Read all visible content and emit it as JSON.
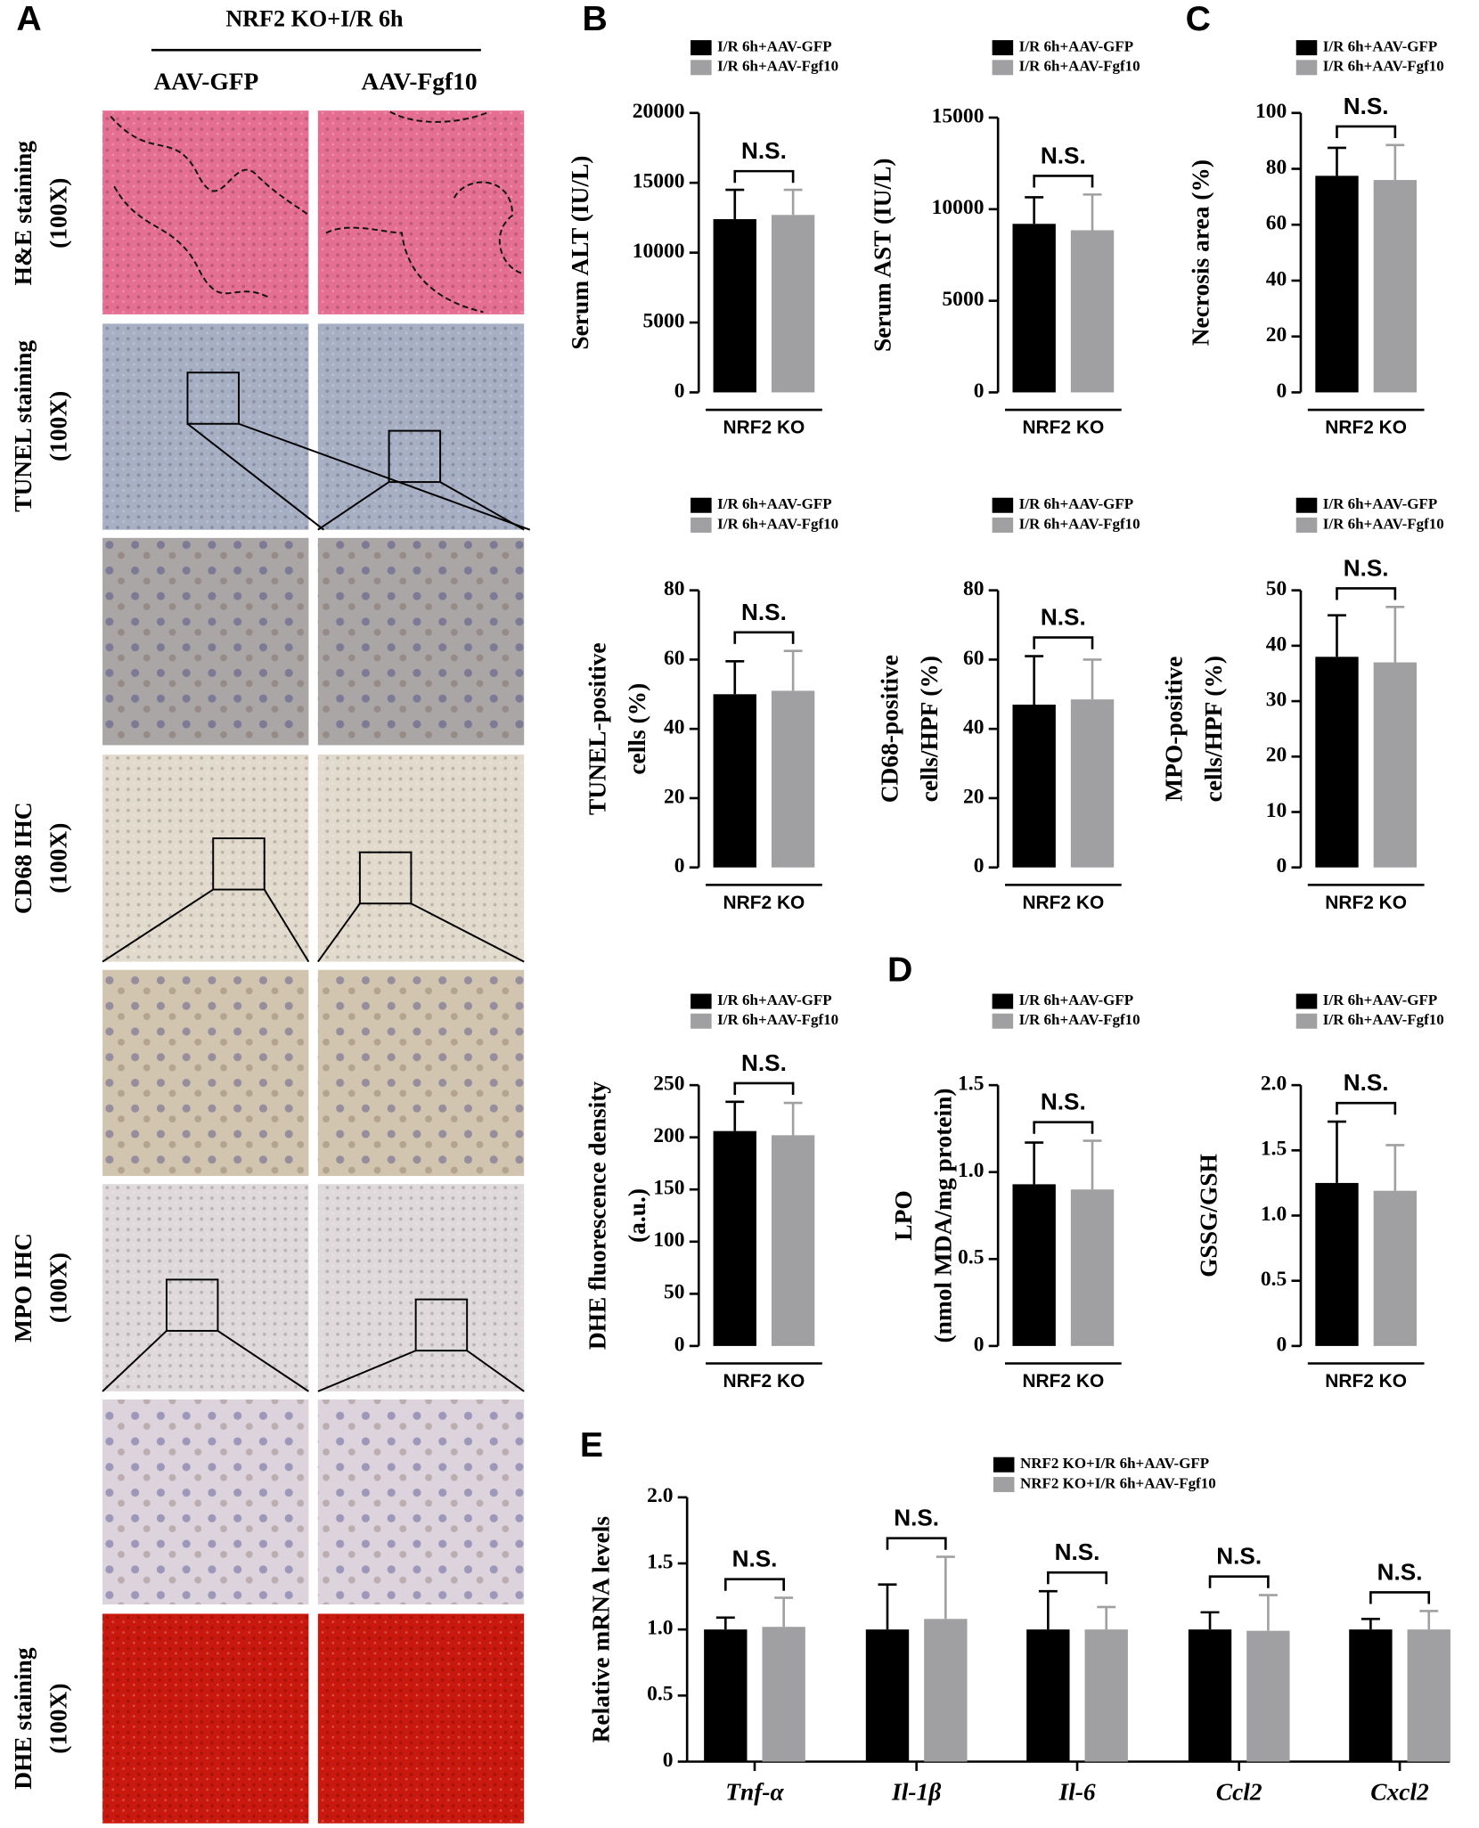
{
  "panel_letters": [
    "A",
    "B",
    "C",
    "D",
    "E"
  ],
  "panel_a": {
    "title": "NRF2 KO+I/R 6h",
    "columns": [
      "AAV-GFP",
      "AAV-Fgf10"
    ],
    "rows": [
      {
        "label": "H&E staining",
        "sub": "(100X)"
      },
      {
        "label": "TUNEL staining",
        "sub": "(100X)"
      },
      {
        "label": "CD68 IHC",
        "sub": "(100X)"
      },
      {
        "label": "MPO IHC",
        "sub": "(100X)"
      },
      {
        "label": "DHE staining",
        "sub": "(100X)"
      }
    ]
  },
  "chart_data": [
    {
      "type": "bar",
      "ylabel": "Serum ALT (IU/L)",
      "categories": [
        "NRF2 KO"
      ],
      "ylim": [
        0,
        20000
      ],
      "yticks": [
        0,
        5000,
        10000,
        15000,
        20000
      ],
      "annotations": [
        "N.S."
      ],
      "series": [
        {
          "name": "I/R 6h+AAV-GFP",
          "color": "#000000",
          "values": [
            12400
          ],
          "errors": [
            2100
          ]
        },
        {
          "name": "I/R 6h+AAV-Fgf10",
          "color": "#a0a0a2",
          "values": [
            12700
          ],
          "errors": [
            1800
          ]
        }
      ]
    },
    {
      "type": "bar",
      "ylabel": "Serum AST (IU/L)",
      "categories": [
        "NRF2 KO"
      ],
      "ylim": [
        0,
        15000
      ],
      "yticks": [
        0,
        5000,
        10000,
        15000
      ],
      "annotations": [
        "N.S."
      ],
      "series": [
        {
          "name": "I/R 6h+AAV-GFP",
          "color": "#000000",
          "values": [
            9200
          ],
          "errors": [
            1450
          ]
        },
        {
          "name": "I/R 6h+AAV-Fgf10",
          "color": "#a0a0a2",
          "values": [
            8850
          ],
          "errors": [
            1950
          ]
        }
      ]
    },
    {
      "type": "bar",
      "ylabel": "Necrosis area (%)",
      "categories": [
        "NRF2 KO"
      ],
      "ylim": [
        0,
        100
      ],
      "yticks": [
        0,
        20,
        40,
        60,
        80,
        100
      ],
      "annotations": [
        "N.S."
      ],
      "series": [
        {
          "name": "I/R 6h+AAV-GFP",
          "color": "#000000",
          "values": [
            77.5
          ],
          "errors": [
            10
          ]
        },
        {
          "name": "I/R 6h+AAV-Fgf10",
          "color": "#a0a0a2",
          "values": [
            76
          ],
          "errors": [
            12.5
          ]
        }
      ]
    },
    {
      "type": "bar",
      "ylabel": [
        "TUNEL-positive",
        "cells (%)"
      ],
      "categories": [
        "NRF2 KO"
      ],
      "ylim": [
        0,
        80
      ],
      "yticks": [
        0,
        20,
        40,
        60,
        80
      ],
      "annotations": [
        "N.S."
      ],
      "series": [
        {
          "name": "I/R 6h+AAV-GFP",
          "color": "#000000",
          "values": [
            50
          ],
          "errors": [
            9.5
          ]
        },
        {
          "name": "I/R 6h+AAV-Fgf10",
          "color": "#a0a0a2",
          "values": [
            51
          ],
          "errors": [
            11.5
          ]
        }
      ]
    },
    {
      "type": "bar",
      "ylabel": [
        "CD68-positive",
        "cells/HPF (%)"
      ],
      "categories": [
        "NRF2 KO"
      ],
      "ylim": [
        0,
        80
      ],
      "yticks": [
        0,
        20,
        40,
        60,
        80
      ],
      "annotations": [
        "N.S."
      ],
      "series": [
        {
          "name": "I/R 6h+AAV-GFP",
          "color": "#000000",
          "values": [
            47
          ],
          "errors": [
            14
          ]
        },
        {
          "name": "I/R 6h+AAV-Fgf10",
          "color": "#a0a0a2",
          "values": [
            48.5
          ],
          "errors": [
            11.5
          ]
        }
      ]
    },
    {
      "type": "bar",
      "ylabel": [
        "MPO-positive",
        "cells/HPF (%)"
      ],
      "categories": [
        "NRF2 KO"
      ],
      "ylim": [
        0,
        50
      ],
      "yticks": [
        0,
        10,
        20,
        30,
        40,
        50
      ],
      "annotations": [
        "N.S."
      ],
      "series": [
        {
          "name": "I/R 6h+AAV-GFP",
          "color": "#000000",
          "values": [
            38
          ],
          "errors": [
            7.5
          ]
        },
        {
          "name": "I/R 6h+AAV-Fgf10",
          "color": "#a0a0a2",
          "values": [
            37
          ],
          "errors": [
            10
          ]
        }
      ]
    },
    {
      "type": "bar",
      "ylabel": [
        "DHE fluorescence density",
        "(a.u.)"
      ],
      "categories": [
        "NRF2 KO"
      ],
      "ylim": [
        0,
        250
      ],
      "yticks": [
        0,
        50,
        100,
        150,
        200,
        250
      ],
      "annotations": [
        "N.S."
      ],
      "series": [
        {
          "name": "I/R 6h+AAV-GFP",
          "color": "#000000",
          "values": [
            206
          ],
          "errors": [
            28
          ]
        },
        {
          "name": "I/R 6h+AAV-Fgf10",
          "color": "#a0a0a2",
          "values": [
            202
          ],
          "errors": [
            31
          ]
        }
      ]
    },
    {
      "type": "bar",
      "ylabel": [
        "LPO",
        "(nmol MDA/mg protein)"
      ],
      "categories": [
        "NRF2 KO"
      ],
      "ylim": [
        0,
        1.5
      ],
      "yticks": [
        0,
        0.5,
        {
          "value": 1,
          "label": "1.0"
        },
        1.5
      ],
      "annotations": [
        "N.S."
      ],
      "series": [
        {
          "name": "I/R 6h+AAV-GFP",
          "color": "#000000",
          "values": [
            0.93
          ],
          "errors": [
            0.24
          ]
        },
        {
          "name": "I/R 6h+AAV-Fgf10",
          "color": "#a0a0a2",
          "values": [
            0.9
          ],
          "errors": [
            0.28
          ]
        }
      ]
    },
    {
      "type": "bar",
      "ylabel": "GSSG/GSH",
      "categories": [
        "NRF2 KO"
      ],
      "ylim": [
        0,
        2
      ],
      "yticks": [
        0,
        0.5,
        {
          "value": 1,
          "label": "1.0"
        },
        1.5,
        {
          "value": 2,
          "label": "2.0"
        }
      ],
      "annotations": [
        "N.S."
      ],
      "series": [
        {
          "name": "I/R 6h+AAV-GFP",
          "color": "#000000",
          "values": [
            1.25
          ],
          "errors": [
            0.47
          ]
        },
        {
          "name": "I/R 6h+AAV-Fgf10",
          "color": "#a0a0a2",
          "values": [
            1.19
          ],
          "errors": [
            0.35
          ]
        }
      ]
    },
    {
      "type": "bar",
      "ylabel": "Relative mRNA levels",
      "categories": [
        "Tnf-α",
        "Il-1β",
        "Il-6",
        "Ccl2",
        "Cxcl2"
      ],
      "ylim": [
        0,
        2
      ],
      "yticks": [
        0,
        0.5,
        {
          "value": 1,
          "label": "1.0"
        },
        1.5,
        {
          "value": 2,
          "label": "2.0"
        }
      ],
      "annotations": [
        "N.S.",
        "N.S.",
        "N.S.",
        "N.S.",
        "N.S."
      ],
      "series": [
        {
          "name": "NRF2 KO+I/R 6h+AAV-GFP",
          "color": "#000000",
          "values": [
            1,
            1,
            1,
            1,
            1
          ],
          "errors": [
            0.09,
            0.34,
            0.29,
            0.13,
            0.08
          ]
        },
        {
          "name": "NRF2 KO+I/R 6h+AAV-Fgf10",
          "color": "#a0a0a2",
          "values": [
            1.02,
            1.08,
            1,
            0.99,
            1
          ],
          "errors": [
            0.22,
            0.47,
            0.17,
            0.27,
            0.14
          ]
        }
      ]
    }
  ]
}
